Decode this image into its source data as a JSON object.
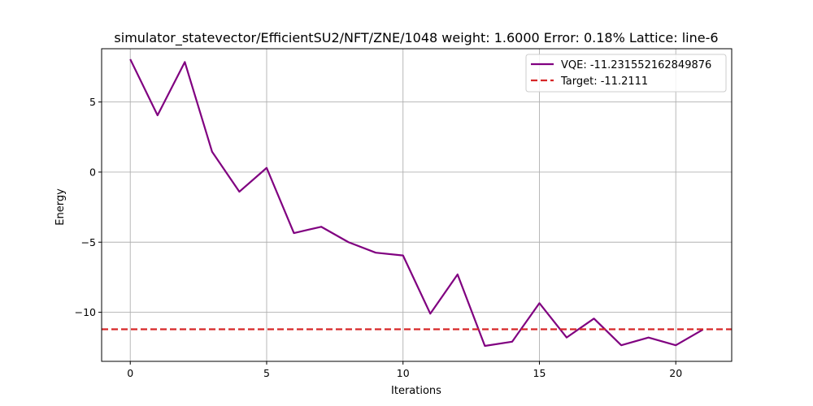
{
  "chart_data": {
    "type": "line",
    "title": "simulator_statevector/EfficientSU2/NFT/ZNE/1048 weight: 1.6000 Error: 0.18% Lattice: line-6",
    "xlabel": "Iterations",
    "ylabel": "Energy",
    "xlim": [
      -1.05,
      22.05
    ],
    "ylim": [
      -13.5,
      8.8
    ],
    "xticks": [
      0,
      5,
      10,
      15,
      20
    ],
    "yticks": [
      5,
      0,
      -5,
      -10
    ],
    "ytick_labels": [
      "5",
      "0",
      "−5",
      "−10"
    ],
    "grid": true,
    "legend_position": "top-right",
    "series": [
      {
        "name": "VQE: -11.231552162849876",
        "color": "#800080",
        "style": "solid",
        "x": [
          0,
          1,
          2,
          3,
          4,
          5,
          6,
          7,
          8,
          9,
          10,
          11,
          12,
          13,
          14,
          15,
          16,
          17,
          18,
          19,
          20,
          21
        ],
        "values": [
          8.05,
          4.05,
          7.85,
          1.45,
          -1.4,
          0.3,
          -4.35,
          -3.9,
          -5.0,
          -5.75,
          -5.95,
          -10.1,
          -7.3,
          -12.4,
          -12.1,
          -9.35,
          -11.8,
          -10.45,
          -12.35,
          -11.8,
          -12.35,
          -11.23
        ]
      },
      {
        "name": "Target: -11.2111",
        "color": "#d62728",
        "style": "dashed",
        "type": "hline",
        "value": -11.2111
      }
    ]
  }
}
